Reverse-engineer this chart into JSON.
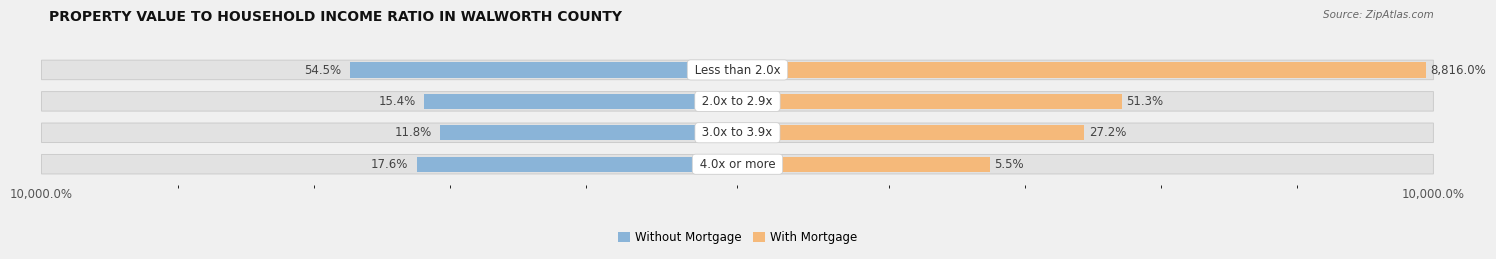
{
  "title": "PROPERTY VALUE TO HOUSEHOLD INCOME RATIO IN WALWORTH COUNTY",
  "source": "Source: ZipAtlas.com",
  "categories": [
    "Less than 2.0x",
    "2.0x to 2.9x",
    "3.0x to 3.9x",
    "4.0x or more"
  ],
  "without_mortgage": [
    54.5,
    15.4,
    11.8,
    17.6
  ],
  "with_mortgage": [
    8816.0,
    51.3,
    27.2,
    5.5
  ],
  "without_mortgage_labels": [
    "54.5%",
    "15.4%",
    "11.8%",
    "17.6%"
  ],
  "with_mortgage_labels": [
    "8,816.0%",
    "51.3%",
    "27.2%",
    "5.5%"
  ],
  "color_without": "#8ab4d8",
  "color_with": "#f5b97a",
  "background_color": "#f0f0f0",
  "bar_bg_color": "#e2e2e2",
  "bar_edge_color": "#cccccc",
  "category_bubble_color": "#ffffff",
  "title_fontsize": 10,
  "label_fontsize": 8.5,
  "legend_fontsize": 8.5,
  "source_fontsize": 7.5,
  "xtick_left_label": "10,000.0%",
  "xtick_right_label": "10,000.0%"
}
